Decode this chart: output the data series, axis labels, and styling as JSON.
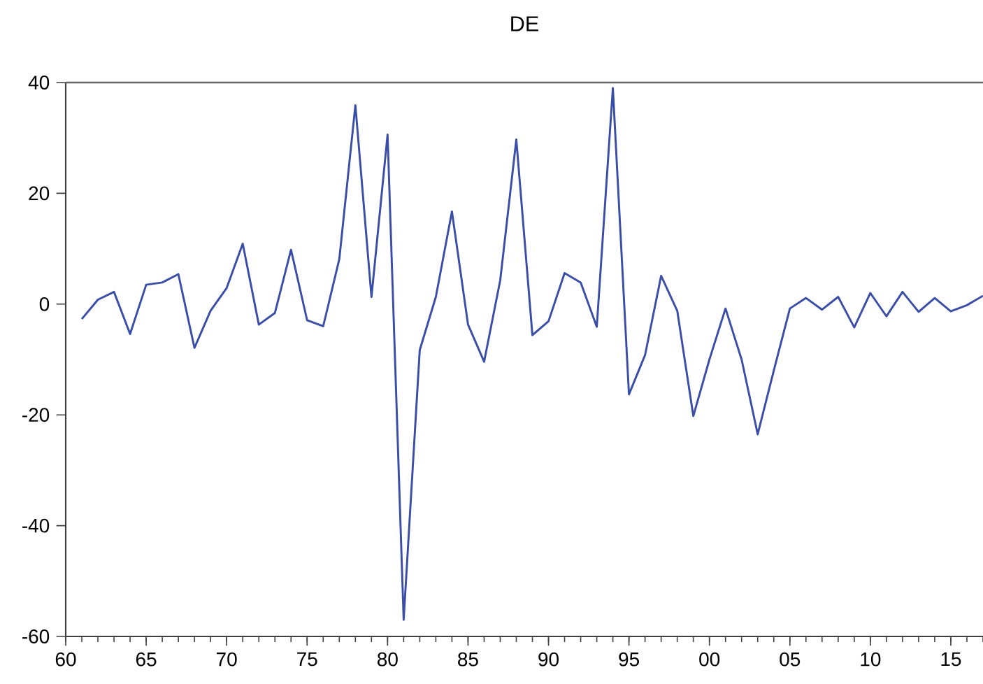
{
  "chart_data": {
    "type": "line",
    "title": "DE",
    "x": [
      1961,
      1962,
      1963,
      1964,
      1965,
      1966,
      1967,
      1968,
      1969,
      1970,
      1971,
      1972,
      1973,
      1974,
      1975,
      1976,
      1977,
      1978,
      1979,
      1980,
      1981,
      1982,
      1983,
      1984,
      1985,
      1986,
      1987,
      1988,
      1989,
      1990,
      1991,
      1992,
      1993,
      1994,
      1995,
      1996,
      1997,
      1998,
      1999,
      2000,
      2001,
      2002,
      2003,
      2004,
      2005,
      2006,
      2007,
      2008,
      2009,
      2010,
      2011,
      2012,
      2013,
      2014,
      2015,
      2016,
      2017
    ],
    "series": [
      {
        "color": "#3a4ea8",
        "values": [
          -2.7,
          0.8,
          2.2,
          -5.4,
          3.5,
          3.9,
          5.4,
          -7.9,
          -1.2,
          2.9,
          10.9,
          -3.7,
          -1.6,
          9.8,
          -2.9,
          -4,
          8.1,
          35.9,
          1.3,
          30.6,
          -57,
          -8.3,
          1.3,
          16.7,
          -3.7,
          -10.4,
          4.3,
          29.7,
          -5.6,
          -3.1,
          5.6,
          3.9,
          -4.1,
          39,
          -16.3,
          -9.2,
          5.1,
          -1.2,
          -20.2,
          -10,
          -0.8,
          -10,
          -23.5,
          -12,
          -0.8,
          1.1,
          -1,
          1.3,
          -4.2,
          2,
          -2.2,
          2.2,
          -1.4,
          1.1,
          -1.3,
          -0.2,
          1.5
        ]
      }
    ],
    "xlim": [
      1960,
      2017
    ],
    "xticks": [
      {
        "value": 1960,
        "label": "60"
      },
      {
        "value": 1965,
        "label": "65"
      },
      {
        "value": 1970,
        "label": "70"
      },
      {
        "value": 1975,
        "label": "75"
      },
      {
        "value": 1980,
        "label": "80"
      },
      {
        "value": 1985,
        "label": "85"
      },
      {
        "value": 1990,
        "label": "90"
      },
      {
        "value": 1995,
        "label": "95"
      },
      {
        "value": 2000,
        "label": "00"
      },
      {
        "value": 2005,
        "label": "05"
      },
      {
        "value": 2010,
        "label": "10"
      },
      {
        "value": 2015,
        "label": "15"
      }
    ],
    "ylim": [
      -60,
      40
    ],
    "yticks": [
      -60,
      -40,
      -20,
      0,
      20,
      40
    ],
    "grid": false,
    "marker": "none",
    "line_style": "solid"
  }
}
